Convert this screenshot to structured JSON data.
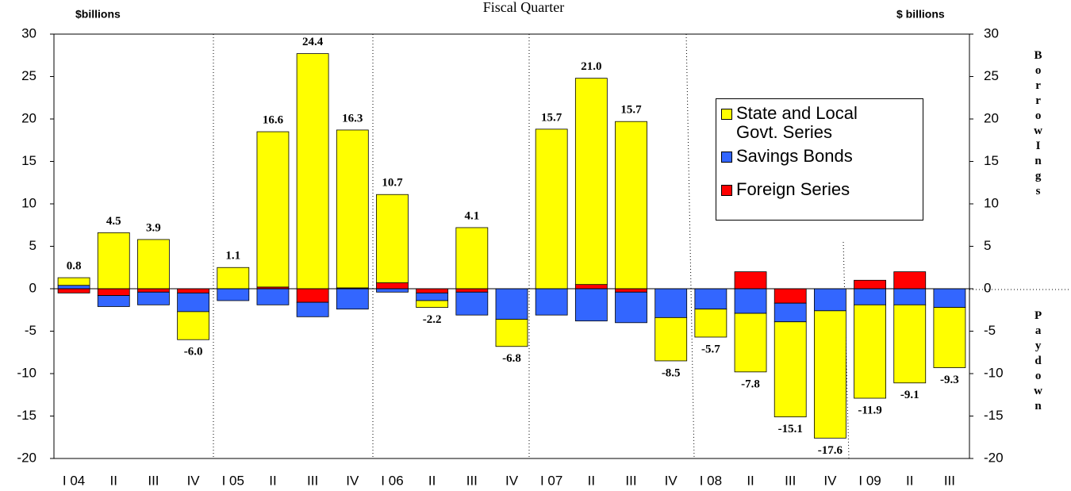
{
  "chart_data": {
    "type": "stacked-bar",
    "title": "Fiscal Quarter",
    "y_label": "$billions",
    "y2_label": "$ billions",
    "positive_note": "BorrowIngs",
    "negative_note": "Paydown",
    "categories": [
      "I 04",
      "II",
      "III",
      "IV",
      "I 05",
      "II",
      "III",
      "IV",
      "I 06",
      "II",
      "III",
      "IV",
      "I 07",
      "II",
      "III",
      "IV",
      "I 08",
      "II",
      "III",
      "IV",
      "I 09",
      "II",
      "III"
    ],
    "series": [
      {
        "name": "State and Local Govt. Series",
        "color": "#ffff00",
        "values": [
          0.9,
          6.6,
          5.8,
          -3.3,
          2.5,
          18.3,
          27.7,
          18.6,
          10.4,
          -0.8,
          7.2,
          -3.2,
          18.8,
          24.3,
          19.7,
          -5.1,
          -3.3,
          -6.9,
          -11.2,
          -15.0,
          -11.0,
          -9.2,
          -7.1
        ]
      },
      {
        "name": "Savings Bonds",
        "color": "#3366ff",
        "values": [
          0.4,
          -1.3,
          -1.5,
          -2.2,
          -1.4,
          -1.9,
          -1.7,
          -2.4,
          -0.4,
          -0.9,
          -2.7,
          -3.6,
          -3.1,
          -3.8,
          -3.6,
          -3.4,
          -2.4,
          -2.9,
          -2.2,
          -2.6,
          -1.9,
          -1.9,
          -2.2
        ]
      },
      {
        "name": "Foreign Series",
        "color": "#ff0000",
        "values": [
          -0.5,
          -0.8,
          -0.4,
          -0.5,
          0,
          0.2,
          -1.6,
          0.1,
          0.7,
          -0.5,
          -0.4,
          0,
          0,
          0.5,
          -0.4,
          0,
          0,
          2.0,
          -1.7,
          0,
          1.0,
          2.0,
          0
        ]
      }
    ],
    "net_values": [
      0.8,
      4.5,
      3.9,
      -6.0,
      1.1,
      16.6,
      24.4,
      16.3,
      10.7,
      -2.2,
      4.1,
      -6.8,
      15.7,
      21.0,
      15.7,
      -8.5,
      -5.7,
      -7.8,
      -15.1,
      -17.6,
      -11.9,
      -9.1,
      -9.3
    ],
    "net_labels": [
      "0.8",
      "4.5",
      "3.9",
      "-6.0",
      "1.1",
      "16.6",
      "24.4",
      "16.3",
      "10.7",
      "-2.2",
      "4.1",
      "-6.8",
      "15.7",
      "21.0",
      "15.7",
      "-8.5",
      "-5.7",
      "-7.8",
      "-15.1",
      "-17.6",
      "-11.9",
      "-9.1",
      "-9.3"
    ],
    "ylim": [
      -20,
      30
    ],
    "yticks": [
      -20,
      -15,
      -10,
      -5,
      0,
      5,
      10,
      15,
      20,
      25,
      30
    ],
    "y2lim": [
      -20,
      30
    ],
    "y2ticks": [
      -20,
      -15,
      -10,
      -5,
      0,
      5,
      10,
      15,
      20,
      25,
      30
    ]
  }
}
